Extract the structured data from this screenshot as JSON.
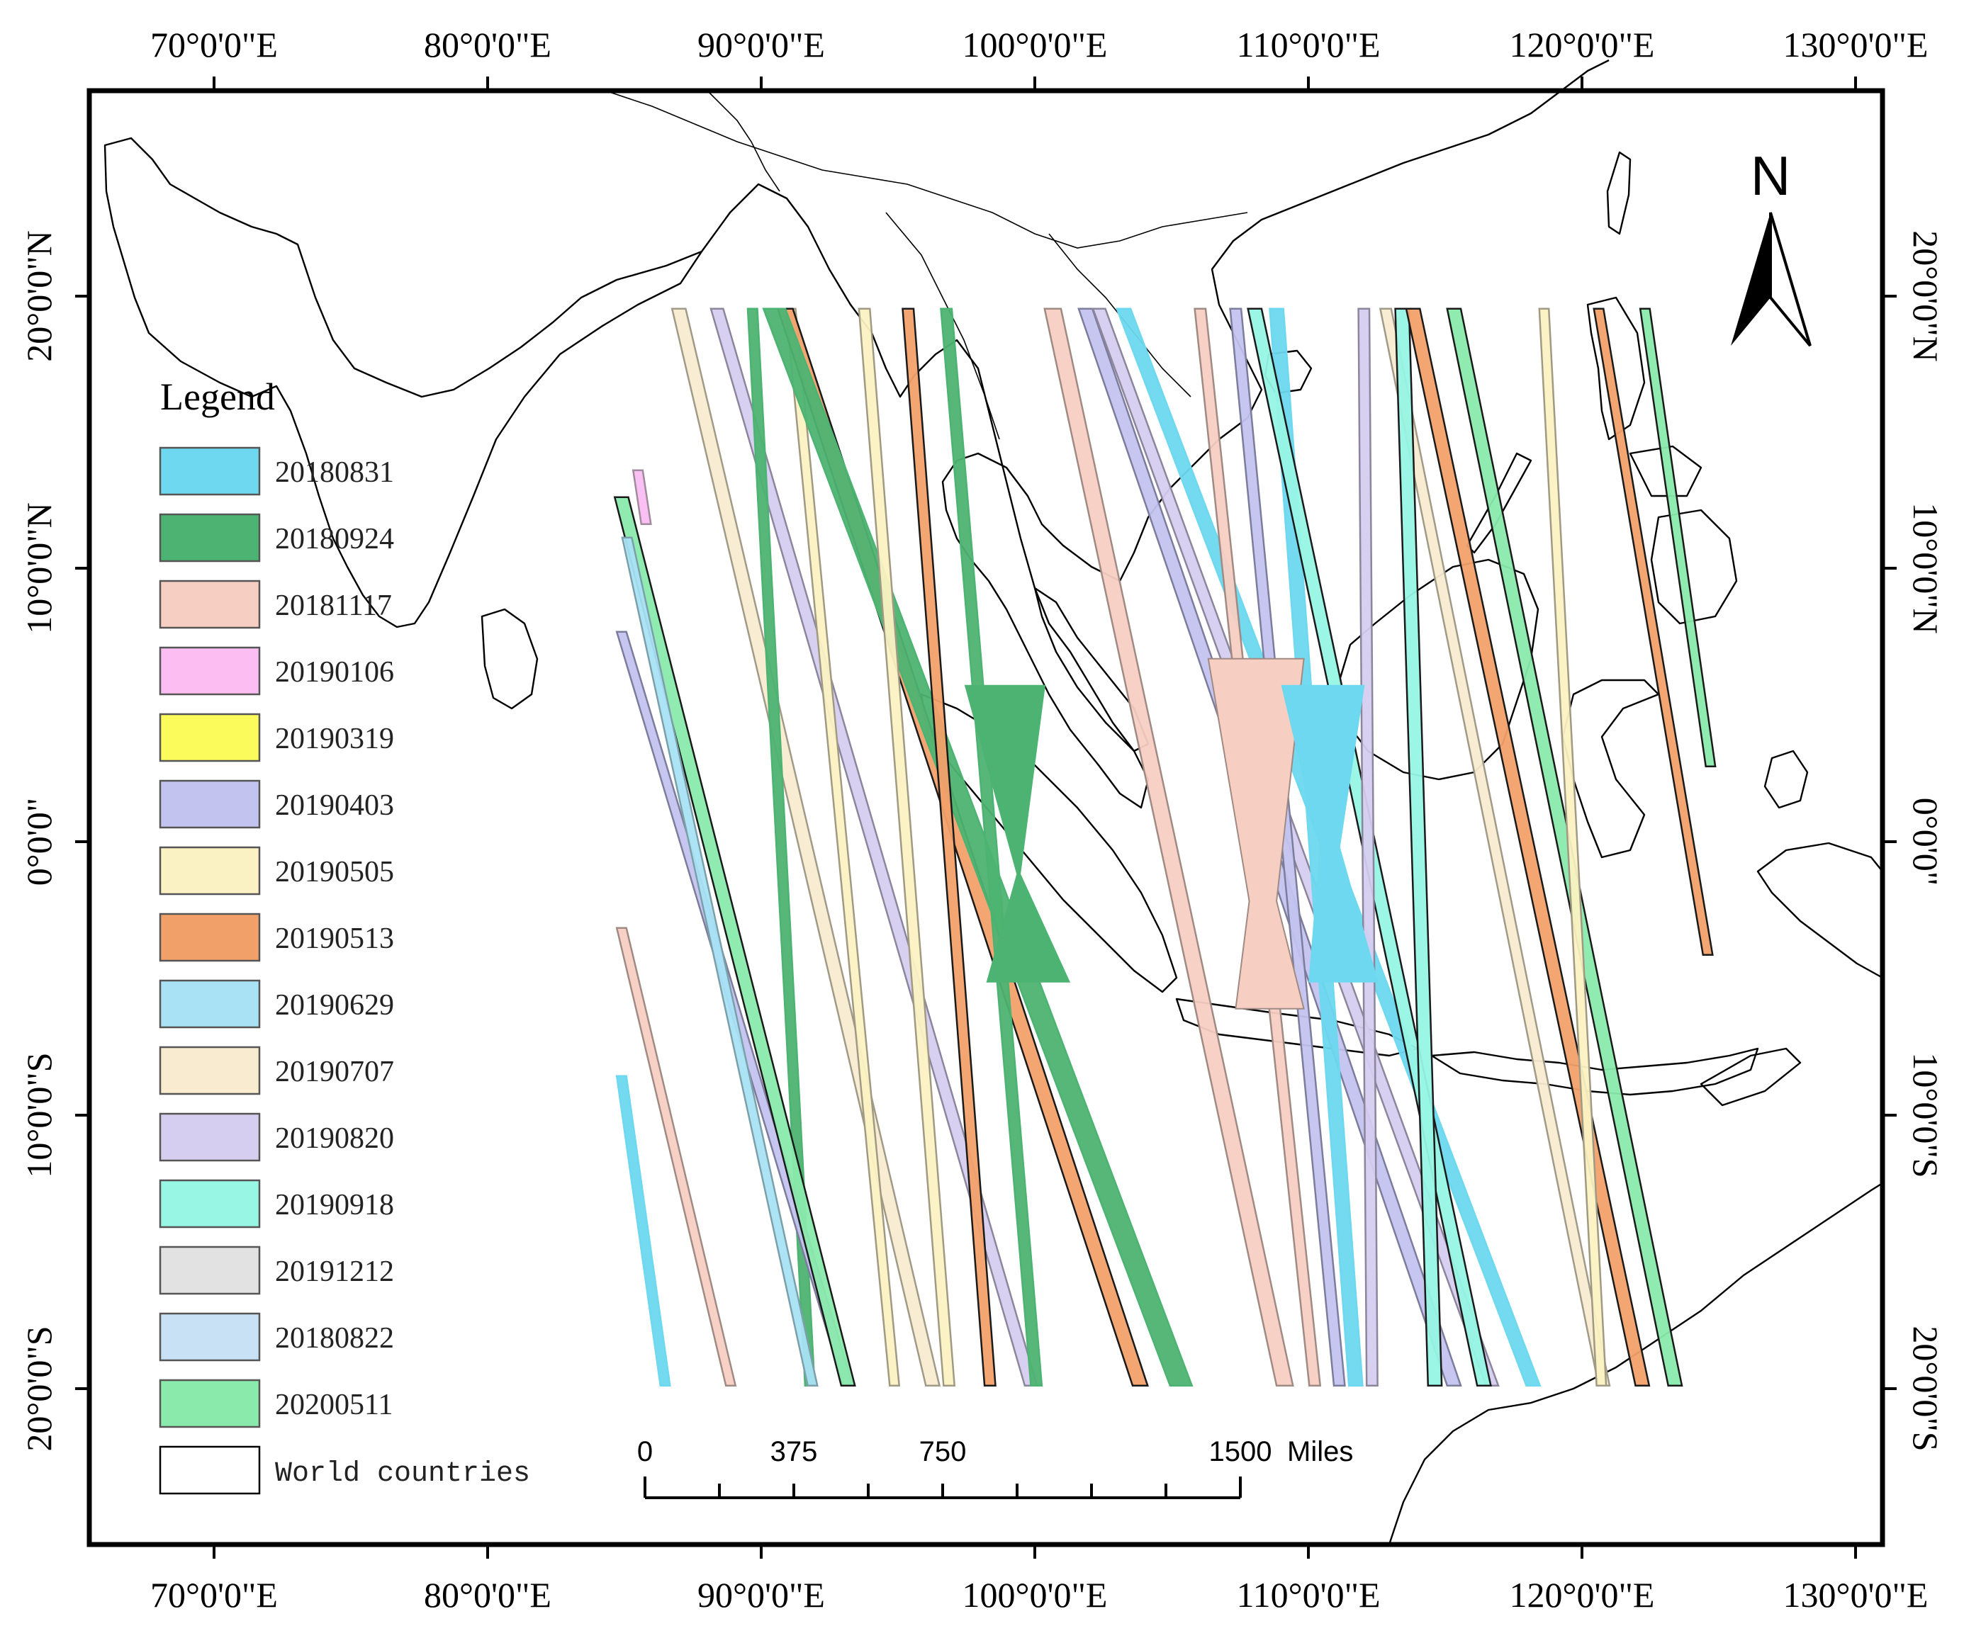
{
  "map": {
    "lon_labels": [
      "70°0'0\"E",
      "80°0'0\"E",
      "90°0'0\"E",
      "100°0'0\"E",
      "110°0'0\"E",
      "120°0'0\"E",
      "130°0'0\"E"
    ],
    "lon_values": [
      70,
      80,
      90,
      100,
      110,
      120,
      130
    ],
    "lat_labels": [
      "20°0'0\"N",
      "10°0'0\"N",
      "0°0'0\"",
      "10°0'0\"S",
      "20°0'0\"S"
    ],
    "lat_values": [
      20,
      10,
      0,
      -10,
      -20
    ],
    "extent": {
      "lon_min": 65.5,
      "lon_max": 131.2,
      "lat_min": -25.9,
      "lat_max": 28.1
    }
  },
  "legend": {
    "title": "Legend",
    "items": [
      {
        "label": "20180831",
        "color": "#6dd8ef",
        "stroke": "#6dd8ef"
      },
      {
        "label": "20180924",
        "color": "#4db372",
        "stroke": "#4db372"
      },
      {
        "label": "20181117",
        "color": "#f7cfc2",
        "stroke": "#a08a84"
      },
      {
        "label": "20190106",
        "color": "#fbbdf2",
        "stroke": "#a08a9e"
      },
      {
        "label": "20190319",
        "color": "#fbfb5c",
        "stroke": "#a0a05c"
      },
      {
        "label": "20190403",
        "color": "#c3c3ef",
        "stroke": "#7c7c9c"
      },
      {
        "label": "20190505",
        "color": "#fbf2c3",
        "stroke": "#a09a84"
      },
      {
        "label": "20190513",
        "color": "#f2a06a",
        "stroke": "#1a1a1a"
      },
      {
        "label": "20190629",
        "color": "#a8e2f4",
        "stroke": "#7ca0aa"
      },
      {
        "label": "20190707",
        "color": "#f8ebd0",
        "stroke": "#a09a88"
      },
      {
        "label": "20190820",
        "color": "#d6cef0",
        "stroke": "#8c869c"
      },
      {
        "label": "20190918",
        "color": "#97f6e4",
        "stroke": "#1a1a1a"
      },
      {
        "label": "20191212",
        "color": "#e2e2e2",
        "stroke": "#333333"
      },
      {
        "label": "20180822",
        "color": "#c8e1f4",
        "stroke": "#8ca0b0"
      },
      {
        "label": "20200511",
        "color": "#8aeaac",
        "stroke": "#1a1a1a"
      },
      {
        "label": "World countries",
        "color": "#ffffff",
        "stroke": "#000000"
      }
    ]
  },
  "scale_bar": {
    "labels": [
      "0",
      "375",
      "750",
      "1500"
    ],
    "unit": "Miles"
  },
  "north_arrow": {
    "label": "N"
  }
}
